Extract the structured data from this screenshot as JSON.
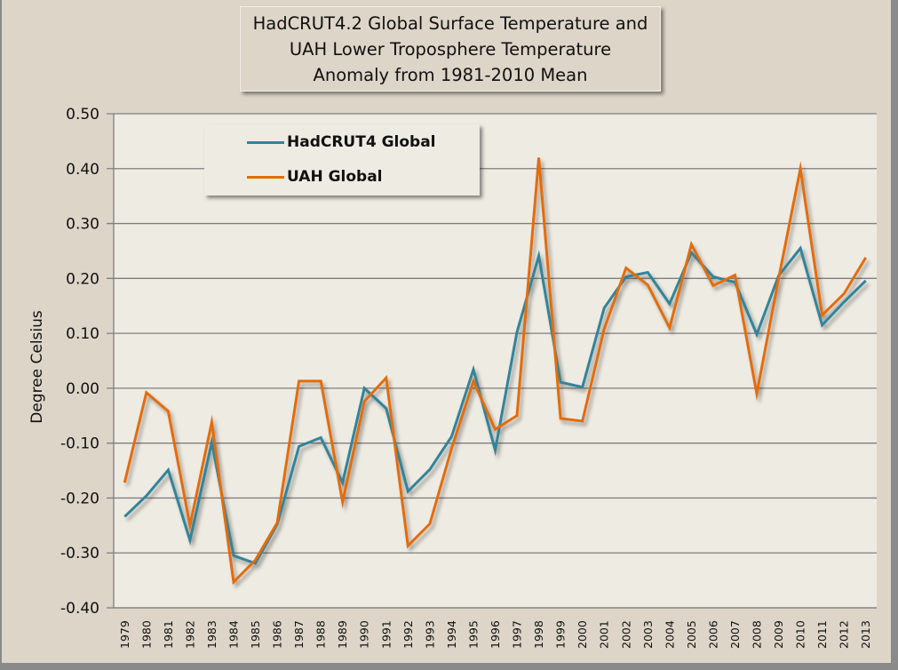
{
  "chart_data": {
    "type": "line",
    "title_lines": [
      "HadCRUT4.2 Global Surface Temperature and",
      "UAH Lower Troposphere Temperature",
      "Anomaly from 1981-2010 Mean"
    ],
    "xlabel": "",
    "ylabel": "Degree Celsius",
    "ylim": [
      -0.4,
      0.5
    ],
    "yticks": [
      "0.50",
      "0.40",
      "0.30",
      "0.20",
      "0.10",
      "0.00",
      "-0.10",
      "-0.20",
      "-0.30",
      "-0.40"
    ],
    "ytick_values": [
      0.5,
      0.4,
      0.3,
      0.2,
      0.1,
      0.0,
      -0.1,
      -0.2,
      -0.3,
      -0.4
    ],
    "grid": "horizontal",
    "legend_placement": "top-left",
    "x": [
      "1979",
      "1980",
      "1981",
      "1982",
      "1983",
      "1984",
      "1985",
      "1986",
      "1987",
      "1988",
      "1989",
      "1990",
      "1991",
      "1992",
      "1993",
      "1994",
      "1995",
      "1996",
      "1997",
      "1998",
      "1999",
      "2000",
      "2001",
      "2002",
      "2003",
      "2004",
      "2005",
      "2006",
      "2007",
      "2008",
      "2009",
      "2010",
      "2011",
      "2012",
      "2013"
    ],
    "series": [
      {
        "name": "HadCRUT4 Global",
        "color": "#31849b",
        "values": [
          -0.234,
          -0.196,
          -0.149,
          -0.277,
          -0.099,
          -0.305,
          -0.319,
          -0.248,
          -0.106,
          -0.09,
          -0.172,
          0.0,
          -0.037,
          -0.188,
          -0.148,
          -0.088,
          0.034,
          -0.113,
          0.102,
          0.241,
          0.011,
          0.002,
          0.146,
          0.203,
          0.211,
          0.154,
          0.247,
          0.203,
          0.193,
          0.098,
          0.205,
          0.255,
          0.115,
          0.157,
          0.196
        ]
      },
      {
        "name": "UAH Global",
        "color": "#e36c09",
        "values": [
          -0.172,
          -0.008,
          -0.042,
          -0.25,
          -0.062,
          -0.353,
          -0.313,
          -0.245,
          0.013,
          0.013,
          -0.207,
          -0.024,
          0.019,
          -0.287,
          -0.247,
          -0.11,
          0.013,
          -0.075,
          -0.05,
          0.42,
          -0.055,
          -0.06,
          0.108,
          0.219,
          0.188,
          0.11,
          0.262,
          0.187,
          0.206,
          -0.01,
          0.2,
          0.4,
          0.133,
          0.172,
          0.238
        ]
      }
    ]
  },
  "colors": {
    "frame_background": "#ddd5c8",
    "plot_background": "#eeebe2",
    "gridline": "#7f7f7f"
  }
}
